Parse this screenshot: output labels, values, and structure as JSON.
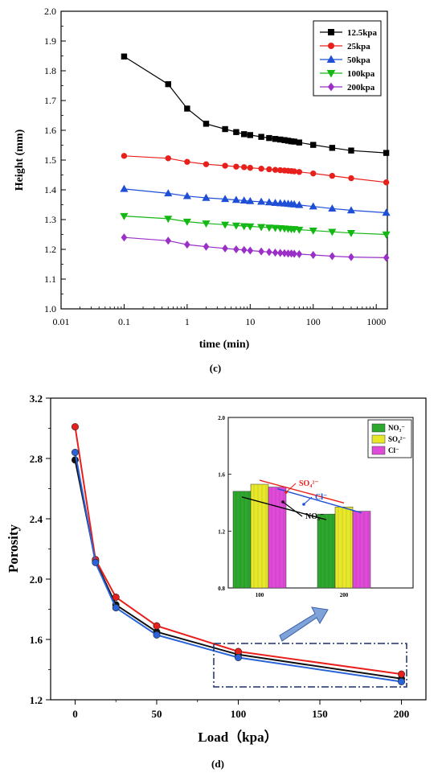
{
  "figure": {
    "panel_c_label": "(c)",
    "panel_d_label": "(d)"
  },
  "chart_data": [
    {
      "type": "line",
      "panel": "(c)",
      "xlabel": "time (min)",
      "ylabel": "Height (mm)",
      "xscale": "log",
      "xlim": [
        0.01,
        1500
      ],
      "ylim": [
        1.0,
        2.0
      ],
      "x_tick_labels": [
        "0.01",
        "0.1",
        "1",
        "10",
        "100",
        "1000"
      ],
      "y_tick_labels": [
        "1.0",
        "1.1",
        "1.2",
        "1.3",
        "1.4",
        "1.5",
        "1.6",
        "1.7",
        "1.8",
        "1.9",
        "2.0"
      ],
      "grid": false,
      "legend_position": "top-right",
      "series": [
        {
          "name": "12.5kpa",
          "color": "#000000",
          "marker": "square",
          "x": [
            0.1,
            0.5,
            1,
            2,
            4,
            6,
            8,
            10,
            15,
            20,
            25,
            30,
            35,
            40,
            45,
            50,
            60,
            100,
            200,
            400,
            1440
          ],
          "y": [
            1.848,
            1.755,
            1.673,
            1.622,
            1.604,
            1.594,
            1.587,
            1.584,
            1.578,
            1.574,
            1.571,
            1.569,
            1.567,
            1.565,
            1.563,
            1.562,
            1.559,
            1.551,
            1.541,
            1.532,
            1.524
          ]
        },
        {
          "name": "25kpa",
          "color": "#e8201c",
          "marker": "circle",
          "x": [
            0.1,
            0.5,
            1,
            2,
            4,
            6,
            8,
            10,
            15,
            20,
            25,
            30,
            35,
            40,
            45,
            50,
            60,
            100,
            200,
            400,
            1440
          ],
          "y": [
            1.514,
            1.506,
            1.494,
            1.486,
            1.481,
            1.478,
            1.476,
            1.474,
            1.471,
            1.469,
            1.467,
            1.466,
            1.465,
            1.464,
            1.463,
            1.462,
            1.46,
            1.455,
            1.447,
            1.439,
            1.425
          ]
        },
        {
          "name": "50kpa",
          "color": "#1f4fd6",
          "marker": "triangle-up",
          "x": [
            0.1,
            0.5,
            1,
            2,
            4,
            6,
            8,
            10,
            15,
            20,
            25,
            30,
            35,
            40,
            45,
            50,
            60,
            100,
            200,
            400,
            1440
          ],
          "y": [
            1.403,
            1.388,
            1.379,
            1.373,
            1.369,
            1.366,
            1.364,
            1.362,
            1.36,
            1.358,
            1.356,
            1.355,
            1.354,
            1.353,
            1.352,
            1.351,
            1.349,
            1.344,
            1.337,
            1.331,
            1.323
          ]
        },
        {
          "name": "100kpa",
          "color": "#14b814",
          "marker": "triangle-down",
          "x": [
            0.1,
            0.5,
            1,
            2,
            4,
            6,
            8,
            10,
            15,
            20,
            25,
            30,
            35,
            40,
            45,
            50,
            60,
            100,
            200,
            400,
            1440
          ],
          "y": [
            1.312,
            1.303,
            1.293,
            1.287,
            1.283,
            1.28,
            1.278,
            1.277,
            1.275,
            1.273,
            1.272,
            1.271,
            1.27,
            1.269,
            1.268,
            1.268,
            1.266,
            1.263,
            1.259,
            1.255,
            1.25
          ]
        },
        {
          "name": "200kpa",
          "color": "#9b30c8",
          "marker": "diamond",
          "x": [
            0.1,
            0.5,
            1,
            2,
            4,
            6,
            8,
            10,
            15,
            20,
            25,
            30,
            35,
            40,
            45,
            50,
            60,
            100,
            200,
            400,
            1440
          ],
          "y": [
            1.24,
            1.229,
            1.216,
            1.209,
            1.203,
            1.2,
            1.198,
            1.196,
            1.193,
            1.191,
            1.189,
            1.188,
            1.187,
            1.186,
            1.186,
            1.185,
            1.184,
            1.181,
            1.177,
            1.174,
            1.172
          ]
        }
      ]
    },
    {
      "type": "line",
      "panel": "(d)",
      "xlabel": "Load（kpa）",
      "ylabel": "Porosity",
      "xlim": [
        -15,
        215
      ],
      "ylim": [
        1.2,
        3.2
      ],
      "x_tick_labels": [
        "0",
        "50",
        "100",
        "150",
        "200"
      ],
      "y_tick_labels": [
        "1.2",
        "1.6",
        "2.0",
        "2.4",
        "2.8",
        "3.2"
      ],
      "grid": false,
      "series": [
        {
          "color": "#111111",
          "x": [
            0,
            12.5,
            25,
            50,
            100,
            200
          ],
          "y": [
            2.79,
            2.12,
            1.83,
            1.65,
            1.5,
            1.34
          ]
        },
        {
          "color": "#e8201c",
          "x": [
            0,
            12.5,
            25,
            50,
            100,
            200
          ],
          "y": [
            3.01,
            2.13,
            1.88,
            1.69,
            1.52,
            1.37
          ]
        },
        {
          "color": "#2a63d8",
          "x": [
            0,
            12.5,
            25,
            50,
            100,
            200
          ],
          "y": [
            2.84,
            2.11,
            1.81,
            1.63,
            1.48,
            1.32
          ]
        }
      ],
      "inset": {
        "type": "bar",
        "categories": [
          "100",
          "200"
        ],
        "ylim": [
          0.8,
          2.0
        ],
        "y_tick_labels": [
          "0.8",
          "1.2",
          "1.6",
          "2.0"
        ],
        "legend_position": "top-right",
        "series": [
          {
            "name": "NO₃⁻",
            "color": "#2ea72e",
            "values": [
              1.48,
              1.32
            ]
          },
          {
            "name": "SO₄²⁻",
            "color": "#e8e82a",
            "values": [
              1.53,
              1.37
            ]
          },
          {
            "name": "Cl⁻",
            "color": "#e04ad8",
            "values": [
              1.51,
              1.34
            ]
          }
        ],
        "annotations": [
          {
            "text": "SO₄²⁻",
            "color": "#e8201c"
          },
          {
            "text": "Cl⁻",
            "color": "#1f4fd6"
          },
          {
            "text": "NO₃⁻",
            "color": "#000000"
          }
        ]
      }
    }
  ]
}
